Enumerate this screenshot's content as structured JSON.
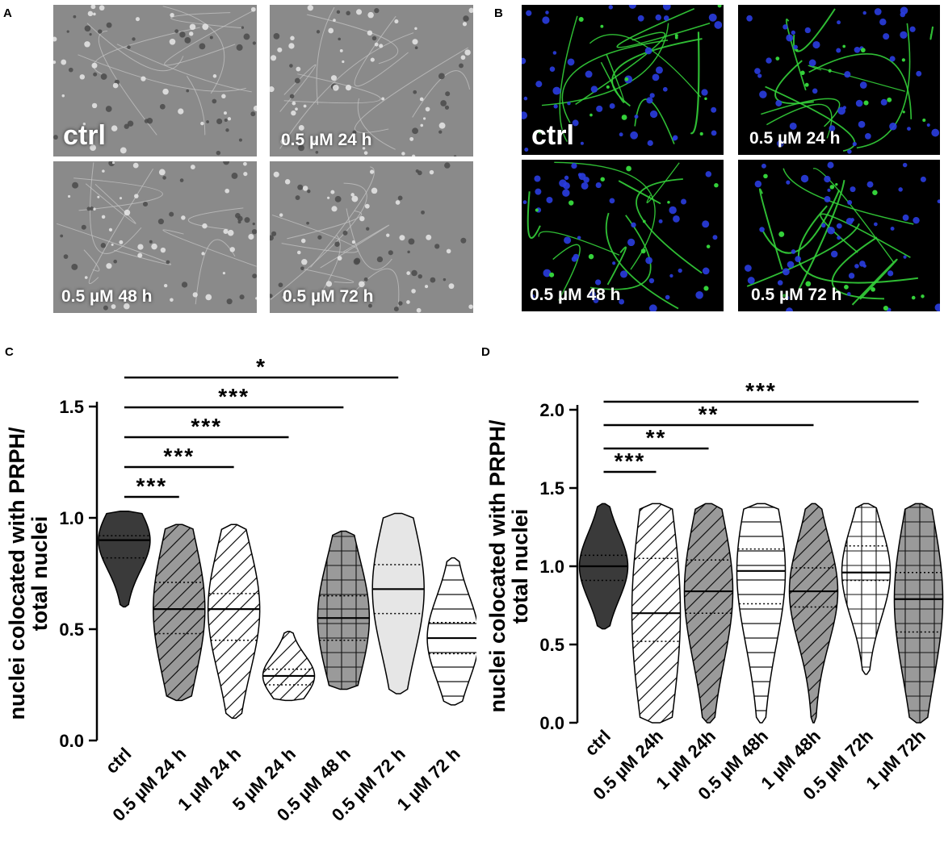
{
  "panels": {
    "A": {
      "letter": "A",
      "images": [
        {
          "label": "ctrl",
          "style": "phase"
        },
        {
          "label": "0.5 µM 24 h",
          "style": "phase"
        },
        {
          "label": "0.5 µM 48 h",
          "style": "phase"
        },
        {
          "label": "0.5 µM 72 h",
          "style": "phase"
        }
      ]
    },
    "B": {
      "letter": "B",
      "images": [
        {
          "label": "ctrl",
          "style": "fluor"
        },
        {
          "label": "0.5 µM 24 h",
          "style": "fluor"
        },
        {
          "label": "0.5 µM 48 h",
          "style": "fluor"
        },
        {
          "label": "0.5 µM 72 h",
          "style": "fluor"
        }
      ]
    },
    "C": {
      "letter": "C"
    },
    "D": {
      "letter": "D"
    }
  },
  "colors": {
    "phase_bg": "#8a8a8a",
    "fluor_bg": "#000000",
    "neurite_green": "#34d13a",
    "nuclei_blue": "#2a3de0",
    "violin_dark": "#3a3a3a",
    "violin_mid": "#9a9a9a",
    "violin_light": "#e6e6e6"
  },
  "chart_data": [
    {
      "type": "violin",
      "panel": "C",
      "ylabel": "nuclei colocated with PRPH/ total nuclei",
      "xlabel": "",
      "ylim": [
        0.0,
        1.5
      ],
      "yticks": [
        "0.0",
        "0.5",
        "1.0",
        "1.5"
      ],
      "categories": [
        "ctrl",
        "0.5 µM 24 h",
        "1 µM 24 h",
        "5 µM 24 h",
        "0.5 µM 48 h",
        "0.5 µM 72 h",
        "1 µM 72 h"
      ],
      "series": [
        {
          "category": "ctrl",
          "fill": "solid-dark",
          "min": 0.6,
          "max": 1.03,
          "median": 0.9,
          "q1": 0.82,
          "q3": 0.92
        },
        {
          "category": "0.5 µM 24 h",
          "fill": "diagonal-grey",
          "min": 0.18,
          "max": 0.97,
          "median": 0.59,
          "q1": 0.48,
          "q3": 0.71
        },
        {
          "category": "1 µM 24 h",
          "fill": "diagonal-white",
          "min": 0.1,
          "max": 0.97,
          "median": 0.59,
          "q1": 0.45,
          "q3": 0.66
        },
        {
          "category": "5 µM 24 h",
          "fill": "diagonal-white",
          "min": 0.18,
          "max": 0.49,
          "median": 0.29,
          "q1": 0.25,
          "q3": 0.32
        },
        {
          "category": "0.5 µM 48 h",
          "fill": "grid-grey",
          "min": 0.23,
          "max": 0.94,
          "median": 0.55,
          "q1": 0.45,
          "q3": 0.65
        },
        {
          "category": "0.5 µM 72 h",
          "fill": "solid-light",
          "min": 0.21,
          "max": 1.02,
          "median": 0.68,
          "q1": 0.57,
          "q3": 0.79
        },
        {
          "category": "1 µM 72 h",
          "fill": "horizontal-white",
          "min": 0.16,
          "max": 0.82,
          "median": 0.46,
          "q1": 0.39,
          "q3": 0.53
        }
      ],
      "significance": [
        {
          "from": "ctrl",
          "to": "0.5 µM 24 h",
          "label": "***"
        },
        {
          "from": "ctrl",
          "to": "1 µM 24 h",
          "label": "***"
        },
        {
          "from": "ctrl",
          "to": "5 µM 24 h",
          "label": "***"
        },
        {
          "from": "ctrl",
          "to": "0.5 µM 48 h",
          "label": "***"
        },
        {
          "from": "ctrl",
          "to": "0.5 µM 72 h",
          "label": "*"
        }
      ]
    },
    {
      "type": "violin",
      "panel": "D",
      "ylabel": "nuclei colocated with PRPH/ total nuclei",
      "xlabel": "",
      "ylim": [
        0.0,
        2.0
      ],
      "yticks": [
        "0.0",
        "0.5",
        "1.0",
        "1.5",
        "2.0"
      ],
      "categories": [
        "ctrl",
        "0.5 µM 24h",
        "1 µM 24h",
        "0.5 µM 48h",
        "1 µM 48h",
        "0.5 µM 72h",
        "1 µM 72h"
      ],
      "series": [
        {
          "category": "ctrl",
          "fill": "solid-dark",
          "min": 0.6,
          "max": 1.4,
          "median": 1.0,
          "q1": 0.91,
          "q3": 1.07
        },
        {
          "category": "0.5 µM 24h",
          "fill": "diagonal-white",
          "min": 0.0,
          "max": 1.4,
          "median": 0.7,
          "q1": 0.52,
          "q3": 1.05
        },
        {
          "category": "1 µM 24h",
          "fill": "diagonal-grey",
          "min": 0.0,
          "max": 1.4,
          "median": 0.84,
          "q1": 0.7,
          "q3": 1.04
        },
        {
          "category": "0.5 µM 48h",
          "fill": "horizontal-white",
          "min": 0.0,
          "max": 1.4,
          "median": 0.97,
          "q1": 0.76,
          "q3": 1.11
        },
        {
          "category": "1 µM 48h",
          "fill": "diagonal-grey",
          "min": 0.0,
          "max": 1.4,
          "median": 0.84,
          "q1": 0.74,
          "q3": 0.99
        },
        {
          "category": "0.5 µM 72h",
          "fill": "grid-white",
          "min": 0.31,
          "max": 1.4,
          "median": 0.96,
          "q1": 0.91,
          "q3": 1.13
        },
        {
          "category": "1 µM 72h",
          "fill": "grid-grey",
          "min": 0.0,
          "max": 1.4,
          "median": 0.79,
          "q1": 0.58,
          "q3": 0.96
        }
      ],
      "significance": [
        {
          "from": "ctrl",
          "to": "0.5 µM 24h",
          "label": "***"
        },
        {
          "from": "ctrl",
          "to": "1 µM 24h",
          "label": "**"
        },
        {
          "from": "ctrl",
          "to": "1 µM 48h",
          "label": "**"
        },
        {
          "from": "ctrl",
          "to": "1 µM 72h",
          "label": "***"
        }
      ]
    }
  ]
}
